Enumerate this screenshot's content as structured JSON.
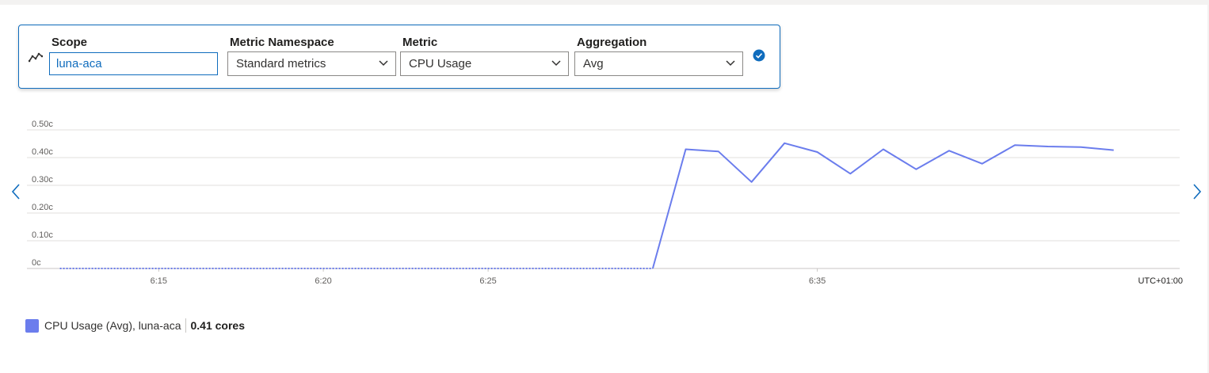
{
  "metric_row": {
    "scope": {
      "label": "Scope",
      "value": "luna-aca"
    },
    "namespace": {
      "label": "Metric Namespace",
      "value": "Standard metrics"
    },
    "metric": {
      "label": "Metric",
      "value": "CPU Usage"
    },
    "aggregation": {
      "label": "Aggregation",
      "value": "Avg"
    }
  },
  "icons": {
    "row": "line-chart-icon",
    "confirm": "checkmark-circle-icon",
    "prev": "chevron-left-icon",
    "next": "chevron-right-icon",
    "dropdown": "chevron-down-icon"
  },
  "colors": {
    "accent": "#0f6cbd",
    "series": "#6b7ded",
    "grid": "#e1dfdd"
  },
  "chart_data": {
    "type": "line",
    "y_ticks": [
      "0c",
      "0.10c",
      "0.20c",
      "0.30c",
      "0.40c",
      "0.50c"
    ],
    "ylim": [
      0,
      0.5
    ],
    "x_ticks": [
      "6:15",
      "6:20",
      "6:25",
      "6:35"
    ],
    "x_tick_positions": [
      6.25,
      6.3333,
      6.4167,
      6.5833
    ],
    "timezone": "UTC+01:00",
    "xlim": [
      6.1833,
      6.7667
    ],
    "grid": true,
    "series": [
      {
        "name": "CPU Usage (Avg), luna-aca",
        "color": "#6b7ded",
        "segments": [
          {
            "style": "dotted",
            "points": [
              [
                6.2,
                0
              ],
              [
                6.5,
                0
              ]
            ]
          },
          {
            "style": "solid",
            "points": [
              [
                6.5,
                0
              ],
              [
                6.5167,
                0.43
              ],
              [
                6.5333,
                0.422
              ],
              [
                6.55,
                0.312
              ],
              [
                6.5667,
                0.452
              ],
              [
                6.5833,
                0.42
              ],
              [
                6.6,
                0.342
              ],
              [
                6.6167,
                0.43
              ],
              [
                6.6333,
                0.358
              ],
              [
                6.65,
                0.425
              ],
              [
                6.6667,
                0.378
              ],
              [
                6.6833,
                0.445
              ],
              [
                6.7,
                0.44
              ],
              [
                6.7167,
                0.438
              ],
              [
                6.7333,
                0.427
              ]
            ]
          }
        ]
      }
    ],
    "legend": {
      "name": "CPU Usage (Avg), luna-aca",
      "value": "0.41 cores",
      "placement": "bottom-left"
    }
  }
}
